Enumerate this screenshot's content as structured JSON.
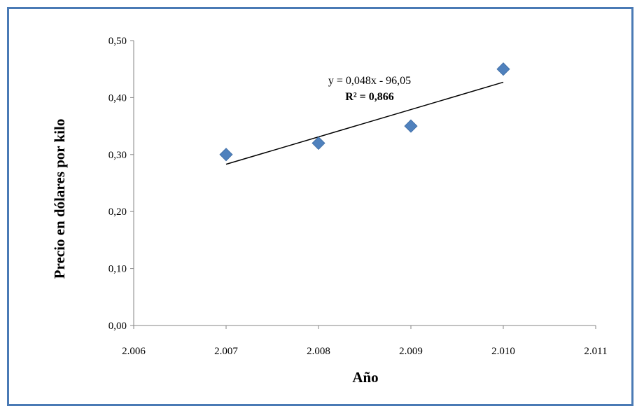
{
  "chart_data": {
    "type": "scatter",
    "title": "",
    "xlabel": "Año",
    "ylabel": "Precio en dólares por kilo",
    "xlim": [
      2006,
      2011
    ],
    "ylim": [
      0,
      0.5
    ],
    "x_ticks": [
      "2.006",
      "2.007",
      "2.008",
      "2.009",
      "2.010",
      "2.011"
    ],
    "y_ticks": [
      "0,00",
      "0,10",
      "0,20",
      "0,30",
      "0,40",
      "0,50"
    ],
    "x_tick_values": [
      2006,
      2007,
      2008,
      2009,
      2010,
      2011
    ],
    "y_tick_values": [
      0,
      0.1,
      0.2,
      0.3,
      0.4,
      0.5
    ],
    "series": [
      {
        "x": [
          2007,
          2008,
          2009,
          2010
        ],
        "y": [
          0.3,
          0.32,
          0.35,
          0.45
        ],
        "color": "#4f81bd",
        "marker": "diamond"
      }
    ],
    "trendline": {
      "equation": "y = 0,048x - 96,05",
      "r2_label": "R² = 0,866",
      "x_range": [
        2007,
        2010
      ],
      "y_range": [
        0.283,
        0.427
      ],
      "color": "#000000"
    },
    "grid": false,
    "legend": "none"
  }
}
